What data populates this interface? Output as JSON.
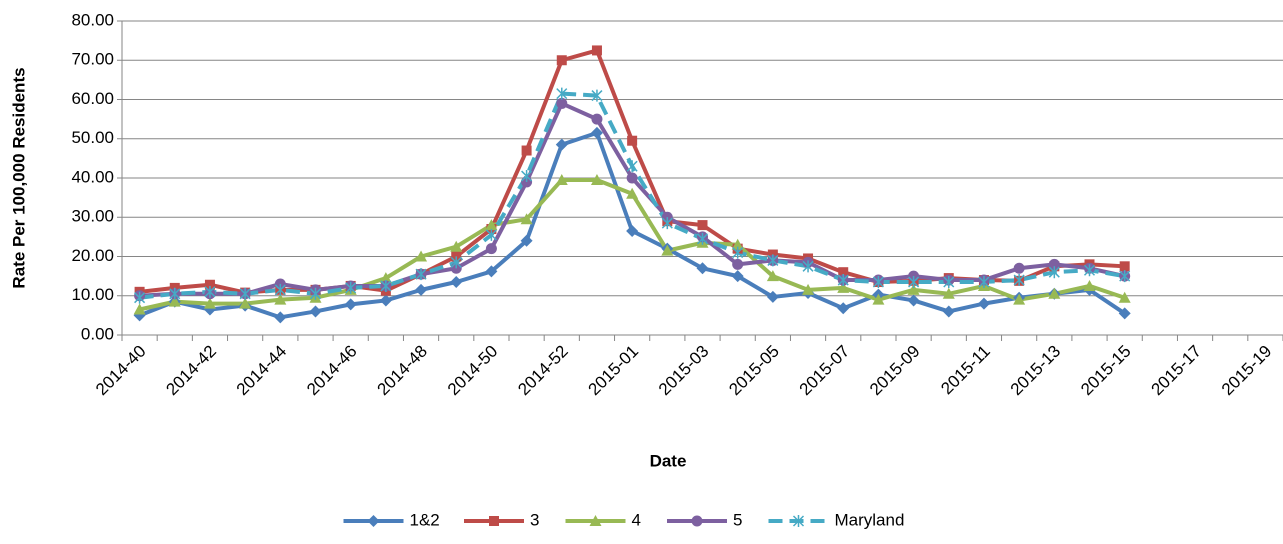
{
  "chart_data": {
    "type": "line",
    "x_label": "Date",
    "y_label": "Rate Per 100,000 Residents",
    "categories": [
      "2014-40",
      null,
      "2014-42",
      null,
      "2014-44",
      null,
      "2014-46",
      null,
      "2014-48",
      null,
      "2014-50",
      null,
      "2014-52",
      null,
      "2015-01",
      null,
      "2015-03",
      null,
      "2015-05",
      null,
      "2015-07",
      null,
      "2015-09",
      null,
      "2015-11",
      null,
      "2015-13",
      null,
      "2015-15",
      null,
      "2015-17",
      null,
      "2015-19"
    ],
    "series": [
      {
        "name": "1&2",
        "color": "#4a7ebb",
        "marker": "diamond",
        "values": [
          5,
          8.5,
          6.5,
          7.5,
          4.5,
          6,
          7.8,
          8.8,
          11.5,
          13.5,
          16.2,
          24,
          48.5,
          51.5,
          26.5,
          22,
          17,
          15,
          9.7,
          10.7,
          6.8,
          10.3,
          8.8,
          6,
          8,
          9.5,
          10.5,
          11.5,
          5.5,
          null,
          null,
          null,
          null
        ]
      },
      {
        "name": "3",
        "color": "#be4b48",
        "marker": "square",
        "values": [
          11,
          12,
          12.8,
          10.8,
          11.5,
          11.5,
          12.5,
          11.3,
          15.5,
          20,
          27,
          47,
          70,
          72.5,
          49.5,
          29,
          28,
          22,
          20.5,
          19.5,
          16,
          13.5,
          13.8,
          14.5,
          14,
          13.8,
          17.5,
          18,
          17.5,
          null,
          null,
          null,
          null
        ]
      },
      {
        "name": "4",
        "color": "#98b954",
        "marker": "triangle",
        "values": [
          6.5,
          8.5,
          8,
          8,
          9,
          9.5,
          11.5,
          14.5,
          20,
          22.5,
          28,
          29.5,
          39.5,
          39.5,
          36,
          21.5,
          23.5,
          23,
          15,
          11.5,
          12,
          9,
          11.5,
          10.5,
          12.5,
          9,
          10.5,
          12.5,
          9.5,
          null,
          null,
          null,
          null
        ]
      },
      {
        "name": "5",
        "color": "#7d60a0",
        "marker": "circle",
        "values": [
          10,
          10.5,
          10.5,
          10.5,
          13,
          11.5,
          12.5,
          12.5,
          15.5,
          17,
          22,
          39,
          59,
          55,
          40,
          30,
          25,
          18,
          19,
          18.5,
          14,
          14,
          15,
          14,
          14,
          17,
          18,
          17,
          15,
          null,
          null,
          null,
          null
        ]
      },
      {
        "name": "Maryland",
        "color": "#46aac5",
        "marker": "star",
        "dashed": true,
        "values": [
          9.5,
          10.5,
          11,
          10.5,
          11.5,
          10.5,
          12,
          12.5,
          15.5,
          18.5,
          25.5,
          40.5,
          61.5,
          61,
          43,
          28.5,
          24.5,
          21,
          19,
          17.5,
          14,
          13.5,
          13.5,
          13.5,
          13.5,
          14,
          16,
          16.5,
          15,
          null,
          null,
          null,
          null
        ]
      }
    ],
    "ylim": [
      0,
      80
    ],
    "yticks": [
      {
        "value": 0,
        "label": "0.00"
      },
      {
        "value": 10,
        "label": "10.00"
      },
      {
        "value": 20,
        "label": "20.00"
      },
      {
        "value": 30,
        "label": "30.00"
      },
      {
        "value": 40,
        "label": "40.00"
      },
      {
        "value": 50,
        "label": "50.00"
      },
      {
        "value": 60,
        "label": "60.00"
      },
      {
        "value": 70,
        "label": "70.00"
      },
      {
        "value": 80,
        "label": "80.00"
      }
    ],
    "grid": true,
    "legend": "bottom"
  }
}
